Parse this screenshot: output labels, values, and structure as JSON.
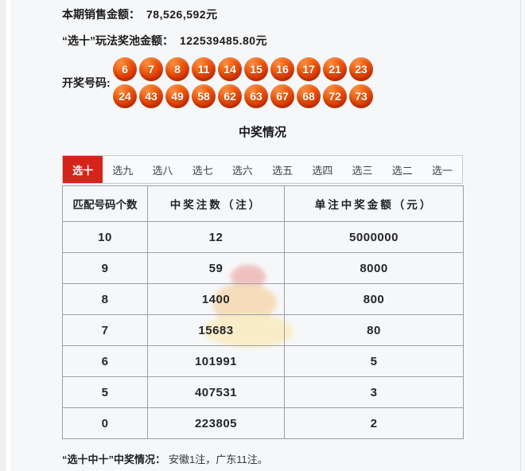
{
  "colors": {
    "accent_red": "#d4241c",
    "ball_orange": "#e8440c",
    "border_gray": "#9ba1a8"
  },
  "header": {
    "sales_label": "本期销售金额：",
    "sales_value": "78,526,592元",
    "pool_label": "“选十”玩法奖池金额：",
    "pool_value": "122539485.80元"
  },
  "draw": {
    "label": "开奖号码:",
    "row1": [
      "6",
      "7",
      "8",
      "11",
      "14",
      "15",
      "16",
      "17",
      "21",
      "23"
    ],
    "row2": [
      "24",
      "43",
      "49",
      "58",
      "62",
      "63",
      "67",
      "68",
      "72",
      "73"
    ]
  },
  "section": {
    "title": "中奖情况"
  },
  "tabs": [
    {
      "label": "选十",
      "active": true
    },
    {
      "label": "选九",
      "active": false
    },
    {
      "label": "选八",
      "active": false
    },
    {
      "label": "选七",
      "active": false
    },
    {
      "label": "选六",
      "active": false
    },
    {
      "label": "选五",
      "active": false
    },
    {
      "label": "选四",
      "active": false
    },
    {
      "label": "选三",
      "active": false
    },
    {
      "label": "选二",
      "active": false
    },
    {
      "label": "选一",
      "active": false
    }
  ],
  "table": {
    "headers": [
      "匹配号码个数",
      "中奖注数（注）",
      "单注中奖金额（元）"
    ],
    "rows": [
      [
        "10",
        "12",
        "5000000"
      ],
      [
        "9",
        "59",
        "8000"
      ],
      [
        "8",
        "1400",
        "800"
      ],
      [
        "7",
        "15683",
        "80"
      ],
      [
        "6",
        "101991",
        "5"
      ],
      [
        "5",
        "407531",
        "3"
      ],
      [
        "0",
        "223805",
        "2"
      ]
    ]
  },
  "footnote": {
    "bold": "“选十中十”中奖情况：",
    "text": "安徽1注，广东11注。"
  }
}
